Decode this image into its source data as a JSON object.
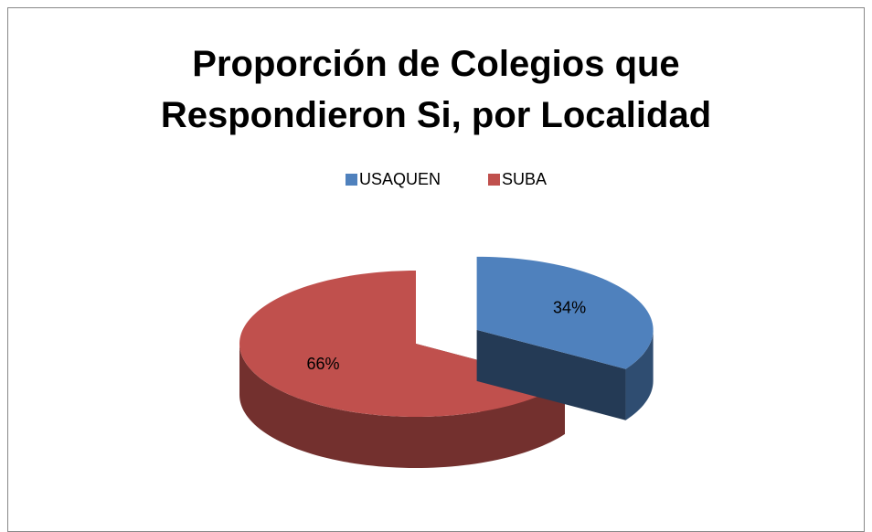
{
  "chart_data": {
    "type": "pie",
    "title": "Proporción de Colegios que Respondieron Si, por Localidad",
    "categories": [
      "USAQUEN",
      "SUBA"
    ],
    "values": [
      34,
      66
    ],
    "value_labels": [
      "34%",
      "66%"
    ],
    "colors": [
      "#4f81bd",
      "#c0504d"
    ],
    "legend": "top"
  }
}
